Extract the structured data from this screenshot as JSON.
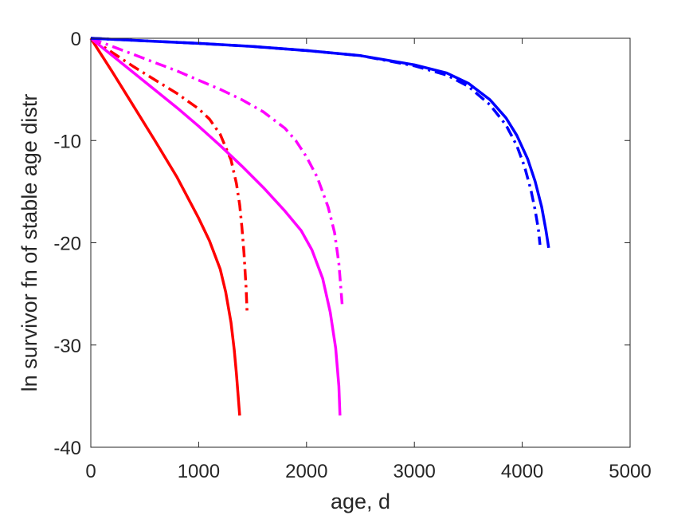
{
  "chart_data": {
    "type": "line",
    "title": "",
    "xlabel": "age, d",
    "ylabel": "ln survivor fn of stable age distr",
    "xlim": [
      0,
      5000
    ],
    "ylim": [
      -40,
      0
    ],
    "xticks": [
      0,
      1000,
      2000,
      3000,
      4000,
      5000
    ],
    "yticks": [
      -40,
      -30,
      -20,
      -10,
      0
    ],
    "grid": false,
    "legend": "none",
    "series": [
      {
        "color": "#ff0000",
        "style": "solid",
        "x": [
          0,
          200,
          400,
          600,
          800,
          1000,
          1100,
          1200,
          1250,
          1300,
          1330,
          1350,
          1365,
          1375,
          1380
        ],
        "y": [
          0,
          -3.3,
          -6.7,
          -10.1,
          -13.6,
          -17.6,
          -19.8,
          -22.6,
          -24.8,
          -27.8,
          -30.5,
          -32.8,
          -34.8,
          -36.2,
          -36.9
        ]
      },
      {
        "color": "#ff0000",
        "style": "dashdot",
        "x": [
          0,
          200,
          400,
          600,
          800,
          1000,
          1100,
          1200,
          1300,
          1350,
          1380,
          1400,
          1420,
          1440,
          1450
        ],
        "y": [
          0,
          -1.4,
          -2.8,
          -4.1,
          -5.4,
          -6.9,
          -7.9,
          -9.4,
          -11.9,
          -14.2,
          -16.3,
          -18.4,
          -21.0,
          -24.5,
          -27.0
        ]
      },
      {
        "color": "#ff00ff",
        "style": "solid",
        "x": [
          0,
          200,
          400,
          600,
          800,
          1000,
          1200,
          1400,
          1600,
          1800,
          1950,
          2050,
          2150,
          2220,
          2270,
          2300,
          2310
        ],
        "y": [
          0,
          -1.7,
          -3.4,
          -5.1,
          -6.8,
          -8.6,
          -10.5,
          -12.5,
          -14.6,
          -16.9,
          -18.8,
          -20.7,
          -23.5,
          -26.8,
          -30.3,
          -34.0,
          -36.9
        ]
      },
      {
        "color": "#ff00ff",
        "style": "dashdot",
        "x": [
          0,
          200,
          400,
          600,
          800,
          1000,
          1200,
          1400,
          1600,
          1800,
          1900,
          2000,
          2100,
          2200,
          2260,
          2300,
          2330
        ],
        "y": [
          0,
          -0.8,
          -1.6,
          -2.4,
          -3.2,
          -4.1,
          -5.0,
          -6.0,
          -7.2,
          -8.8,
          -10.0,
          -11.6,
          -13.6,
          -16.5,
          -19.0,
          -22.0,
          -26.0
        ]
      },
      {
        "color": "#0000ff",
        "style": "solid",
        "x": [
          0,
          500,
          1000,
          1500,
          2000,
          2500,
          3000,
          3300,
          3500,
          3700,
          3850,
          3950,
          4050,
          4120,
          4180,
          4220,
          4245
        ],
        "y": [
          0,
          -0.25,
          -0.5,
          -0.8,
          -1.2,
          -1.7,
          -2.6,
          -3.4,
          -4.4,
          -6.0,
          -7.8,
          -9.5,
          -11.8,
          -14.0,
          -16.5,
          -18.8,
          -20.5
        ]
      },
      {
        "color": "#0000ff",
        "style": "dashdot",
        "x": [
          0,
          500,
          1000,
          1500,
          2000,
          2500,
          3000,
          3300,
          3500,
          3700,
          3850,
          3950,
          4020,
          4080,
          4120,
          4150,
          4165
        ],
        "y": [
          0,
          -0.25,
          -0.5,
          -0.8,
          -1.2,
          -1.7,
          -2.7,
          -3.6,
          -4.7,
          -6.5,
          -8.5,
          -10.5,
          -12.5,
          -14.8,
          -16.8,
          -18.7,
          -20.2
        ]
      }
    ]
  }
}
